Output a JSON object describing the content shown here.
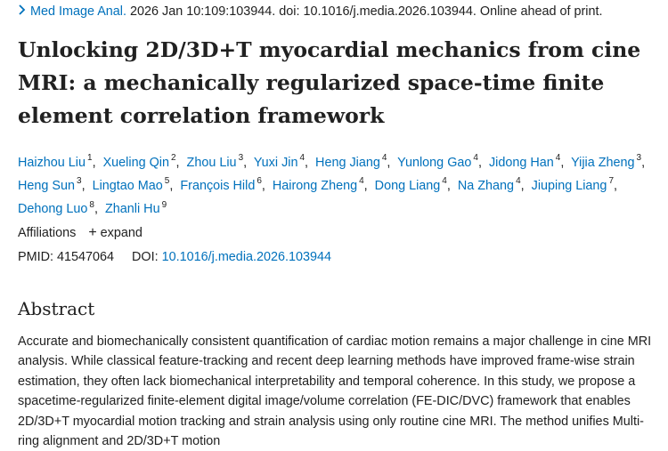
{
  "citation": {
    "journal": "Med Image Anal.",
    "rest": " 2026 Jan 10:109:103944. doi: 10.1016/j.media.2026.103944. Online ahead of print."
  },
  "title": "Unlocking 2D/3D+T myocardial mechanics from cine MRI: a mechanically regularized space-time finite element correlation framework",
  "authors": [
    {
      "name": "Haizhou Liu",
      "sup": "1"
    },
    {
      "name": "Xueling Qin",
      "sup": "2"
    },
    {
      "name": "Zhou Liu",
      "sup": "3"
    },
    {
      "name": "Yuxi Jin",
      "sup": "4"
    },
    {
      "name": "Heng Jiang",
      "sup": "4"
    },
    {
      "name": "Yunlong Gao",
      "sup": "4"
    },
    {
      "name": "Jidong Han",
      "sup": "4"
    },
    {
      "name": "Yijia Zheng",
      "sup": "3"
    },
    {
      "name": "Heng Sun",
      "sup": "3"
    },
    {
      "name": "Lingtao Mao",
      "sup": "5"
    },
    {
      "name": "François Hild",
      "sup": "6"
    },
    {
      "name": "Hairong Zheng",
      "sup": "4"
    },
    {
      "name": "Dong Liang",
      "sup": "4"
    },
    {
      "name": "Na Zhang",
      "sup": "4"
    },
    {
      "name": "Jiuping Liang",
      "sup": "7"
    },
    {
      "name": "Dehong Luo",
      "sup": "8"
    },
    {
      "name": "Zhanli Hu",
      "sup": "9"
    }
  ],
  "affiliations": {
    "label": "Affiliations",
    "toggle_label": "expand"
  },
  "ids": {
    "pmid_label": "PMID:",
    "pmid": "41547064",
    "doi_label": "DOI:",
    "doi": "10.1016/j.media.2026.103944"
  },
  "abstract": {
    "heading": "Abstract",
    "text": "Accurate and biomechanically consistent quantification of cardiac motion remains a major challenge in cine MRI analysis. While classical feature-tracking and recent deep learning methods have improved frame-wise strain estimation, they often lack biomechanical interpretability and temporal coherence. In this study, we propose a spacetime-regularized finite-element digital image/volume correlation (FE-DIC/DVC) framework that enables 2D/3D+T myocardial motion tracking and strain analysis using only routine cine MRI. The method unifies Multi-ring alignment and 2D/3D+T motion"
  }
}
